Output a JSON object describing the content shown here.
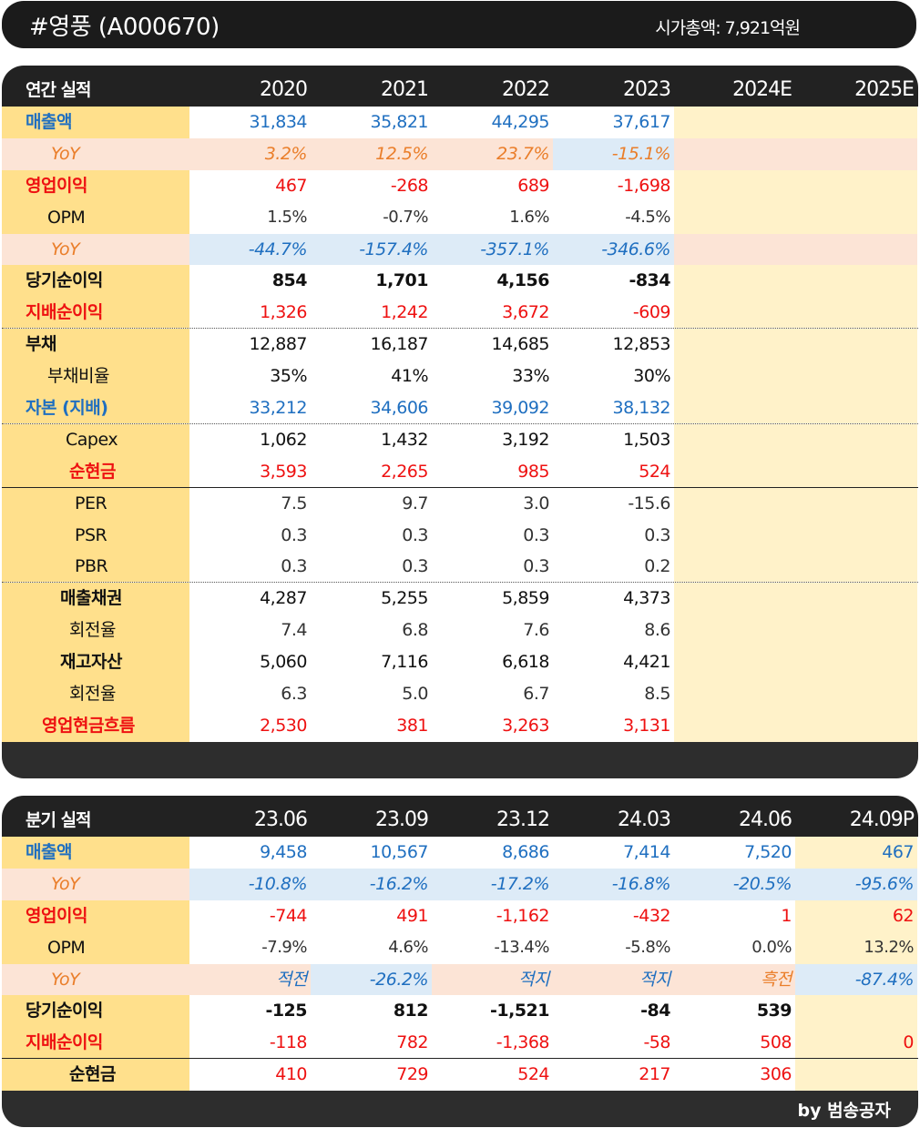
{
  "title": {
    "name": "#영풍 (A000670)",
    "market_cap": "시가총액: 7,921억원"
  },
  "colors": {
    "label_bg": "#ffe08c",
    "light_yellow": "#fff2c9",
    "pink": "#fce4d6",
    "blue": "#ddebf7",
    "blue_text": "#1f6fc0",
    "red_text": "#ee1111",
    "orange_text": "#ea7e2a",
    "dark": "#222222"
  },
  "annual": {
    "header": {
      "label": "연간 실적",
      "cols": [
        "2020",
        "2021",
        "2022",
        "2023",
        "2024E",
        "2025E"
      ]
    },
    "rows": [
      {
        "label": "매출액",
        "vals": [
          "31,834",
          "35,821",
          "44,295",
          "37,617",
          "",
          ""
        ]
      },
      {
        "label": "YoY",
        "vals": [
          "3.2%",
          "12.5%",
          "23.7%",
          "-15.1%",
          "",
          ""
        ]
      },
      {
        "label": "영업이익",
        "vals": [
          "467",
          "-268",
          "689",
          "-1,698",
          "",
          ""
        ]
      },
      {
        "label": "OPM",
        "vals": [
          "1.5%",
          "-0.7%",
          "1.6%",
          "-4.5%",
          "",
          ""
        ]
      },
      {
        "label": "YoY",
        "vals": [
          "-44.7%",
          "-157.4%",
          "-357.1%",
          "-346.6%",
          "",
          ""
        ]
      },
      {
        "label": "당기순이익",
        "vals": [
          "854",
          "1,701",
          "4,156",
          "-834",
          "",
          ""
        ]
      },
      {
        "label": "지배순이익",
        "vals": [
          "1,326",
          "1,242",
          "3,672",
          "-609",
          "",
          ""
        ]
      },
      {
        "label": "부채",
        "vals": [
          "12,887",
          "16,187",
          "14,685",
          "12,853",
          "",
          ""
        ]
      },
      {
        "label": "부채비율",
        "vals": [
          "35%",
          "41%",
          "33%",
          "30%",
          "",
          ""
        ]
      },
      {
        "label": "자본 (지배)",
        "vals": [
          "33,212",
          "34,606",
          "39,092",
          "38,132",
          "",
          ""
        ]
      },
      {
        "label": "Capex",
        "vals": [
          "1,062",
          "1,432",
          "3,192",
          "1,503",
          "",
          ""
        ]
      },
      {
        "label": "순현금",
        "vals": [
          "3,593",
          "2,265",
          "985",
          "524",
          "",
          ""
        ]
      },
      {
        "label": "PER",
        "vals": [
          "7.5",
          "9.7",
          "3.0",
          "-15.6",
          "",
          ""
        ]
      },
      {
        "label": "PSR",
        "vals": [
          "0.3",
          "0.3",
          "0.3",
          "0.3",
          "",
          ""
        ]
      },
      {
        "label": "PBR",
        "vals": [
          "0.3",
          "0.3",
          "0.3",
          "0.2",
          "",
          ""
        ]
      },
      {
        "label": "매출채권",
        "vals": [
          "4,287",
          "5,255",
          "5,859",
          "4,373",
          "",
          ""
        ]
      },
      {
        "label": "회전율",
        "vals": [
          "7.4",
          "6.8",
          "7.6",
          "8.6",
          "",
          ""
        ]
      },
      {
        "label": "재고자산",
        "vals": [
          "5,060",
          "7,116",
          "6,618",
          "4,421",
          "",
          ""
        ]
      },
      {
        "label": "회전율",
        "vals": [
          "6.3",
          "5.0",
          "6.7",
          "8.5",
          "",
          ""
        ]
      },
      {
        "label": "영업현금흐름",
        "vals": [
          "2,530",
          "381",
          "3,263",
          "3,131",
          "",
          ""
        ]
      }
    ]
  },
  "quarterly": {
    "header": {
      "label": "분기 실적",
      "cols": [
        "23.06",
        "23.09",
        "23.12",
        "24.03",
        "24.06",
        "24.09P"
      ]
    },
    "rows": [
      {
        "label": "매출액",
        "vals": [
          "9,458",
          "10,567",
          "8,686",
          "7,414",
          "7,520",
          "467"
        ]
      },
      {
        "label": "YoY",
        "vals": [
          "-10.8%",
          "-16.2%",
          "-17.2%",
          "-16.8%",
          "-20.5%",
          "-95.6%"
        ]
      },
      {
        "label": "영업이익",
        "vals": [
          "-744",
          "491",
          "-1,162",
          "-432",
          "1",
          "62"
        ]
      },
      {
        "label": "OPM",
        "vals": [
          "-7.9%",
          "4.6%",
          "-13.4%",
          "-5.8%",
          "0.0%",
          "13.2%"
        ]
      },
      {
        "label": "YoY",
        "vals": [
          "적전",
          "-26.2%",
          "적지",
          "적지",
          "흑전",
          "-87.4%"
        ]
      },
      {
        "label": "당기순이익",
        "vals": [
          "-125",
          "812",
          "-1,521",
          "-84",
          "539",
          ""
        ]
      },
      {
        "label": "지배순이익",
        "vals": [
          "-118",
          "782",
          "-1,368",
          "-58",
          "508",
          "0"
        ]
      },
      {
        "label": "순현금",
        "vals": [
          "410",
          "729",
          "524",
          "217",
          "306",
          ""
        ]
      }
    ]
  },
  "footer": "by 범송공자"
}
